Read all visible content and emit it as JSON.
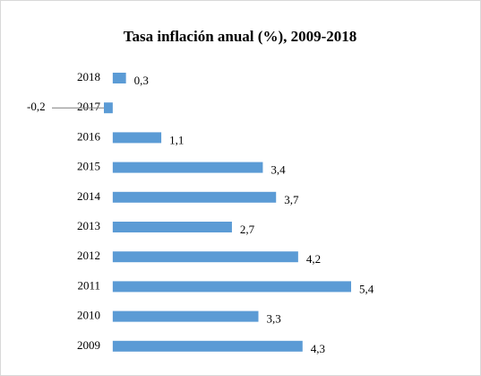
{
  "chart_data": {
    "type": "bar",
    "orientation": "horizontal",
    "title": "Tasa inflación anual (%), 2009-2018",
    "categories": [
      "2018",
      "2017",
      "2016",
      "2015",
      "2014",
      "2013",
      "2012",
      "2011",
      "2010",
      "2009"
    ],
    "values": [
      0.3,
      -0.2,
      1.1,
      3.4,
      3.7,
      2.7,
      4.2,
      5.4,
      3.3,
      4.3
    ],
    "value_labels": [
      "0,3",
      "-0,2",
      "1,1",
      "3,4",
      "3,7",
      "2,7",
      "4,2",
      "5,4",
      "3,3",
      "4,3"
    ],
    "color": "#5b9bd5",
    "xlim": [
      -0.2,
      5.4
    ]
  }
}
